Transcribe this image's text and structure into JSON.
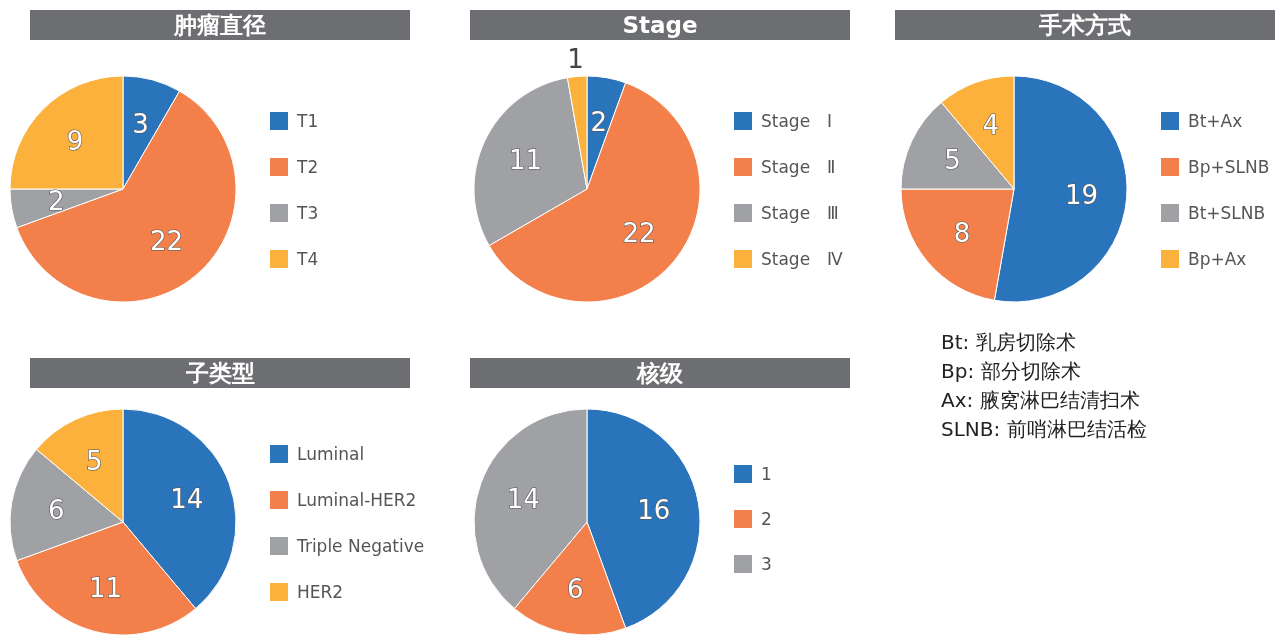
{
  "chart_data": [
    {
      "type": "pie",
      "title": "肿瘤直径",
      "categories": [
        "T1",
        "T2",
        "T3",
        "T4"
      ],
      "values": [
        3,
        22,
        2,
        9
      ],
      "colors": [
        "#2a74bb",
        "#f3804a",
        "#a0a1a5",
        "#fbb13c"
      ],
      "data_labels": true,
      "legend": "right"
    },
    {
      "type": "pie",
      "title": "Stage",
      "categories": [
        "Stage　Ⅰ",
        "Stage　Ⅱ",
        "Stage　Ⅲ",
        "Stage　Ⅳ"
      ],
      "values": [
        2,
        22,
        11,
        1
      ],
      "colors": [
        "#2a74bb",
        "#f3804a",
        "#a0a1a5",
        "#fbb13c"
      ],
      "data_labels": true,
      "legend": "right"
    },
    {
      "type": "pie",
      "title": "手术方式",
      "categories": [
        "Bt+Ax",
        "Bp+SLNB",
        "Bt+SLNB",
        "Bp+Ax"
      ],
      "values": [
        19,
        8,
        5,
        4
      ],
      "colors": [
        "#2a74bb",
        "#f3804a",
        "#a0a1a5",
        "#fbb13c"
      ],
      "data_labels": true,
      "legend": "right",
      "annotations": [
        "Bt: 乳房切除术",
        "Bp: 部分切除术",
        "Ax: 腋窝淋巴结清扫术",
        "SLNB: 前哨淋巴结活检"
      ]
    },
    {
      "type": "pie",
      "title": "子类型",
      "categories": [
        "Luminal",
        "Luminal-HER2",
        "Triple Negative",
        "HER2"
      ],
      "values": [
        14,
        11,
        6,
        5
      ],
      "colors": [
        "#2a74bb",
        "#f3804a",
        "#a0a1a5",
        "#fbb13c"
      ],
      "data_labels": true,
      "legend": "right"
    },
    {
      "type": "pie",
      "title": "核级",
      "categories": [
        "1",
        "2",
        "3"
      ],
      "values": [
        16,
        6,
        14
      ],
      "colors": [
        "#2a74bb",
        "#f3804a",
        "#a0a1a5"
      ],
      "data_labels": true,
      "legend": "right"
    }
  ]
}
